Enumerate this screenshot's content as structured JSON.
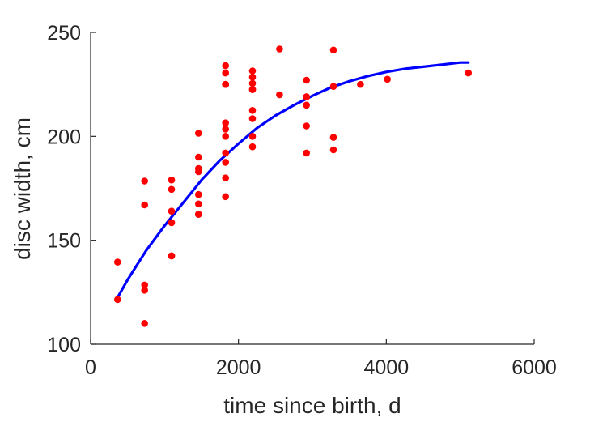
{
  "chart_data": {
    "type": "scatter",
    "title": "",
    "xlabel": "time since birth, d",
    "ylabel": "disc width, cm",
    "xlim": [
      0,
      6000
    ],
    "ylim": [
      100,
      250
    ],
    "xticks": [
      0,
      2000,
      4000,
      6000
    ],
    "yticks": [
      100,
      150,
      200,
      250
    ],
    "grid": false,
    "legend": "none",
    "box": false,
    "colors": {
      "points": "#ff0000",
      "fit": "#0000ff",
      "axes": "#262626"
    },
    "series": [
      {
        "kind": "points",
        "x": [
          365,
          365,
          730,
          730,
          730,
          730,
          730,
          1095,
          1095,
          1095,
          1095,
          1095,
          1095,
          1460,
          1460,
          1460,
          1460,
          1460,
          1460,
          1460,
          1460,
          1825,
          1825,
          1825,
          1825,
          1825,
          1825,
          1825,
          1825,
          1825,
          1825,
          1825,
          1825,
          2190,
          2190,
          2190,
          2190,
          2190,
          2190,
          2190,
          2190,
          2190,
          2555,
          2555,
          2920,
          2920,
          2920,
          2920,
          2920,
          2920,
          3285,
          3285,
          3285,
          3285,
          3650,
          4015,
          5110
        ],
        "y": [
          139.5,
          121.5,
          178.5,
          167,
          128.5,
          126,
          110,
          179,
          174.5,
          164,
          158.5,
          142.5,
          142.5,
          201.5,
          190,
          184.5,
          183,
          172,
          167.5,
          162.5,
          162.5,
          234,
          230.5,
          225,
          206.5,
          203.5,
          200,
          192,
          187.5,
          180,
          171,
          225,
          225,
          231.5,
          228.5,
          225.5,
          222.5,
          212.5,
          208.5,
          200,
          195,
          222.5,
          242,
          220,
          227,
          219,
          215,
          205,
          192,
          219,
          241.5,
          224,
          199.5,
          193.5,
          225,
          227.5,
          230.5
        ]
      },
      {
        "kind": "fit-line",
        "x": [
          365,
          500,
          750,
          1000,
          1250,
          1500,
          1750,
          2000,
          2250,
          2500,
          2750,
          3000,
          3250,
          3500,
          3750,
          4000,
          4250,
          4500,
          4750,
          5000,
          5110
        ],
        "y": [
          122.5,
          131,
          145,
          157,
          168,
          179,
          188.5,
          196.5,
          204,
          210,
          215,
          219.5,
          223.5,
          226.5,
          229,
          231,
          232.5,
          233.5,
          234.5,
          235.5,
          235.5
        ]
      }
    ]
  }
}
